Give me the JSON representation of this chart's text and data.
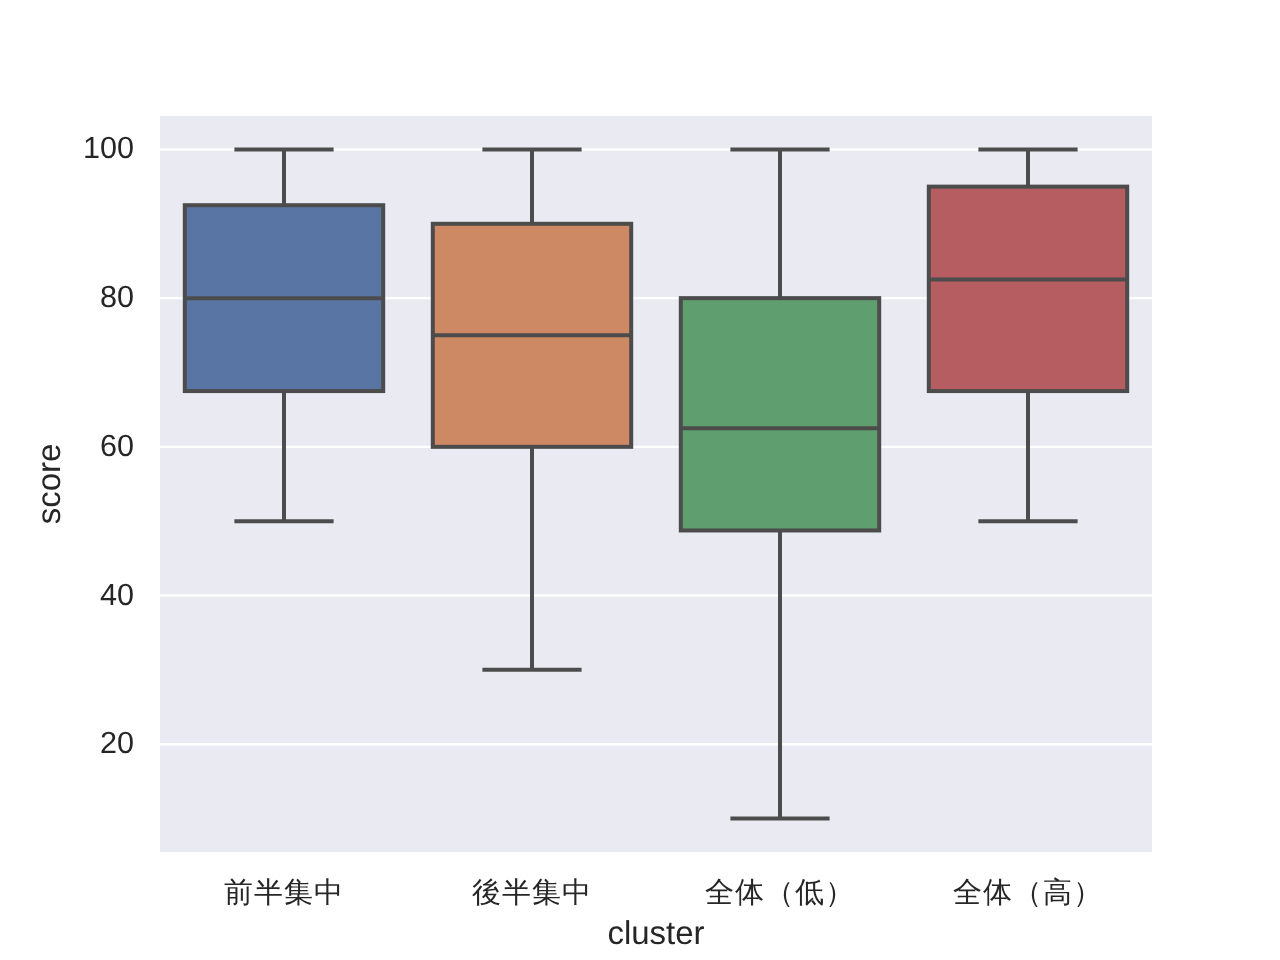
{
  "chart_data": {
    "type": "box",
    "xlabel": "cluster",
    "ylabel": "score",
    "categories": [
      "前半集中",
      "後半集中",
      "全体（低）",
      "全体（高）"
    ],
    "colors": [
      "#5975a4",
      "#cc8963",
      "#5f9e6e",
      "#b55d60"
    ],
    "boxes": [
      {
        "low": 50,
        "q1": 67.5,
        "median": 80,
        "q3": 92.5,
        "high": 100
      },
      {
        "low": 30,
        "q1": 60,
        "median": 75,
        "q3": 90,
        "high": 100
      },
      {
        "low": 10,
        "q1": 48.75,
        "median": 62.5,
        "q3": 80,
        "high": 100
      },
      {
        "low": 50,
        "q1": 67.5,
        "median": 82.5,
        "q3": 95,
        "high": 100
      }
    ],
    "ylim": [
      5.5,
      104.5
    ],
    "yticks": [
      20,
      40,
      60,
      80,
      100
    ],
    "grid": "y"
  }
}
